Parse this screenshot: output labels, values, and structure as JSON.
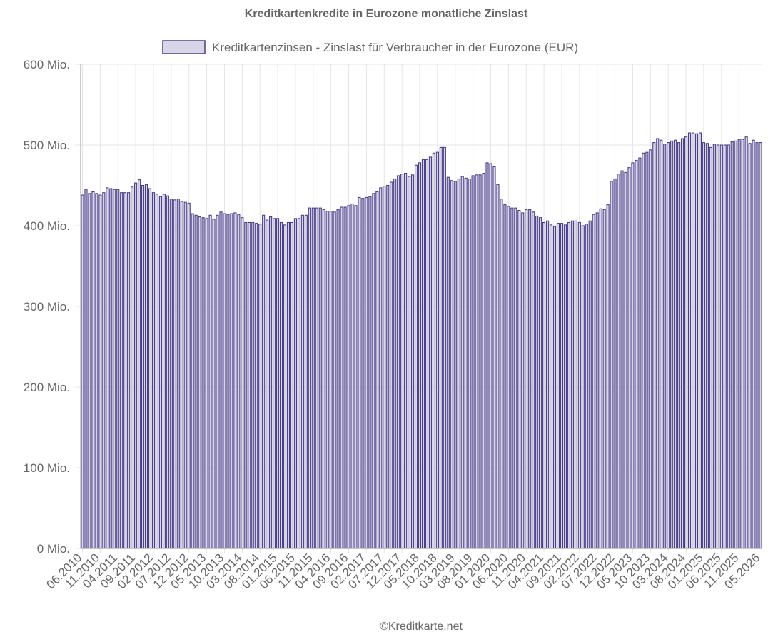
{
  "credit": "©Kreditkarte.net",
  "colors": {
    "bar_stroke": "#4b3f8a",
    "bar_fill": "#d8d5e6",
    "legend_fill": "#d8d5e6",
    "grid": "#e5e5e5",
    "text": "#666666"
  },
  "chart_data": {
    "type": "bar",
    "title": "Kreditkartenkredite in Eurozone monatliche Zinslast",
    "xlabel": "",
    "ylabel": "",
    "ylim": [
      0,
      600000000
    ],
    "yticks": [
      {
        "value": 0,
        "label": "0 Mio."
      },
      {
        "value": 100000000,
        "label": "100 Mio."
      },
      {
        "value": 200000000,
        "label": "200 Mio."
      },
      {
        "value": 300000000,
        "label": "300 Mio."
      },
      {
        "value": 400000000,
        "label": "400 Mio."
      },
      {
        "value": 500000000,
        "label": "500 Mio."
      },
      {
        "value": 600000000,
        "label": "600 Mio."
      }
    ],
    "legend": "top",
    "grid": true,
    "xtick_labels": [
      "06.2010",
      "11.2010",
      "04.2011",
      "09.2011",
      "02.2012",
      "07.2012",
      "12.2012",
      "05.2013",
      "10.2013",
      "03.2014",
      "08.2014",
      "01.2015",
      "06.2015",
      "11.2015",
      "04.2016",
      "09.2016",
      "02.2017",
      "07.2017",
      "12.2017",
      "05.2018",
      "10.2018",
      "03.2019",
      "08.2019",
      "01.2020",
      "06.2020",
      "11.2020",
      "04.2021",
      "09.2021",
      "02.2022",
      "07.2022",
      "12.2022",
      "05.2023",
      "10.2023",
      "03.2024",
      "08.2024",
      "01.2025",
      "06.2025",
      "11.2025",
      "05.2026"
    ],
    "start_month": "06.2010",
    "series": [
      {
        "name": "Kreditkartenzinsen - Zinslast für Verbraucher in der Eurozone (EUR)",
        "values_mio": [
          438,
          445,
          440,
          442,
          440,
          438,
          441,
          447,
          446,
          445,
          445,
          441,
          441,
          441,
          448,
          453,
          457,
          450,
          451,
          446,
          441,
          439,
          436,
          439,
          437,
          433,
          432,
          433,
          430,
          429,
          428,
          415,
          413,
          411,
          410,
          409,
          413,
          408,
          413,
          417,
          415,
          414,
          415,
          416,
          414,
          410,
          404,
          404,
          404,
          403,
          402,
          413,
          407,
          411,
          409,
          409,
          404,
          401,
          404,
          404,
          409,
          409,
          413,
          413,
          422,
          422,
          422,
          422,
          420,
          418,
          418,
          417,
          420,
          423,
          423,
          425,
          427,
          425,
          435,
          434,
          435,
          436,
          440,
          442,
          447,
          449,
          450,
          454,
          458,
          462,
          464,
          465,
          461,
          463,
          475,
          478,
          482,
          482,
          485,
          490,
          491,
          497,
          497,
          460,
          456,
          455,
          458,
          461,
          459,
          458,
          462,
          463,
          463,
          465,
          478,
          477,
          473,
          451,
          433,
          426,
          424,
          422,
          422,
          419,
          416,
          420,
          420,
          417,
          412,
          410,
          404,
          406,
          401,
          399,
          403,
          403,
          401,
          404,
          406,
          406,
          404,
          400,
          402,
          406,
          414,
          416,
          421,
          420,
          426,
          455,
          458,
          464,
          468,
          466,
          472,
          478,
          481,
          484,
          490,
          491,
          494,
          503,
          508,
          506,
          501,
          503,
          505,
          506,
          503,
          508,
          510,
          515,
          515,
          514,
          515,
          503,
          502,
          497,
          501,
          500,
          500,
          500,
          500,
          504,
          505,
          507,
          507,
          510,
          502,
          506,
          503,
          503
        ]
      }
    ]
  }
}
